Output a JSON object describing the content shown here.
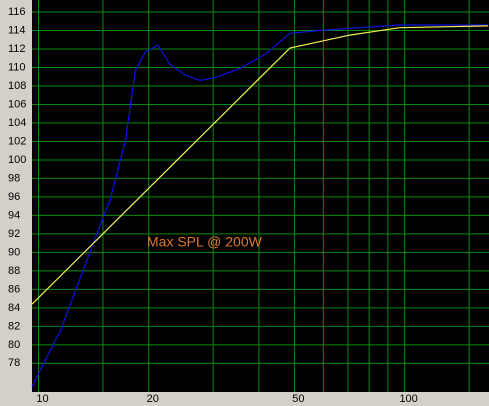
{
  "chart_data": {
    "type": "line",
    "annotation": "Max SPL @ 200W",
    "log_x": true,
    "grid": true,
    "xlim": [
      9.6,
      170
    ],
    "ylim": [
      74.9,
      117.3
    ],
    "xticks": [
      10,
      20,
      50,
      100
    ],
    "xgrid": [
      10,
      15,
      20,
      30,
      40,
      50,
      60,
      70,
      80,
      90,
      100,
      150
    ],
    "yticks": [
      78,
      80,
      82,
      84,
      86,
      88,
      90,
      92,
      94,
      96,
      98,
      100,
      102,
      104,
      106,
      108,
      110,
      112,
      114,
      116
    ],
    "series": [
      {
        "color": "#1010e0",
        "x": [
          9.6,
          11.5,
          13.9,
          15.7,
          17.3,
          18.4,
          19.6,
          21.2,
          22.9,
          25.1,
          27.6,
          30.3,
          35.5,
          41.5,
          48.6,
          58.6,
          75.6,
          96.8,
          169
        ],
        "values": [
          75.5,
          81.6,
          90.3,
          95.7,
          102.2,
          109.7,
          111.7,
          112.4,
          110.3,
          109.2,
          108.6,
          108.9,
          109.9,
          111.4,
          113.7,
          114.0,
          114.3,
          114.6,
          114.6
        ]
      },
      {
        "color": "#f0f050",
        "x": [
          9.6,
          48.6,
          70.9,
          96.8,
          169
        ],
        "values": [
          84.4,
          112.1,
          113.5,
          114.3,
          114.5
        ]
      }
    ]
  }
}
